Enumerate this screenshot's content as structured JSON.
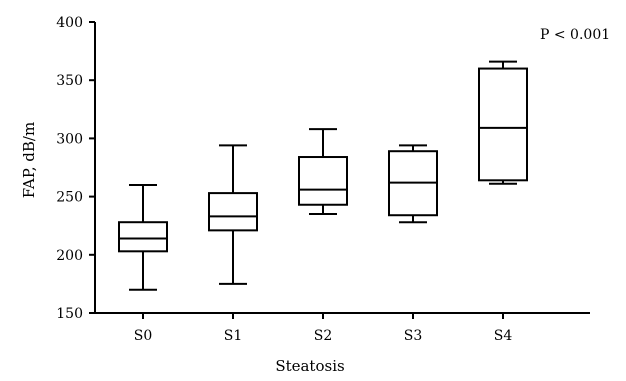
{
  "chart_data": {
    "type": "box",
    "title": "",
    "xlabel": "Steatosis",
    "ylabel": "FAP, dB/m",
    "ylim": [
      150,
      400
    ],
    "yticks": [
      150,
      200,
      250,
      300,
      350,
      400
    ],
    "grid": false,
    "annotation": "P < 0.001",
    "categories": [
      "S0",
      "S1",
      "S2",
      "S3",
      "S4"
    ],
    "boxes": [
      {
        "category": "S0",
        "min": 170,
        "q1": 203,
        "median": 214,
        "q3": 228,
        "max": 260
      },
      {
        "category": "S1",
        "min": 175,
        "q1": 221,
        "median": 233,
        "q3": 253,
        "max": 294
      },
      {
        "category": "S2",
        "min": 235,
        "q1": 243,
        "median": 256,
        "q3": 284,
        "max": 308
      },
      {
        "category": "S3",
        "min": 228,
        "q1": 234,
        "median": 262,
        "q3": 289,
        "max": 294
      },
      {
        "category": "S4",
        "min": 261,
        "q1": 264,
        "median": 309,
        "q3": 360,
        "max": 366
      }
    ],
    "colors": {
      "stroke": "#000000",
      "background": "#ffffff"
    }
  }
}
